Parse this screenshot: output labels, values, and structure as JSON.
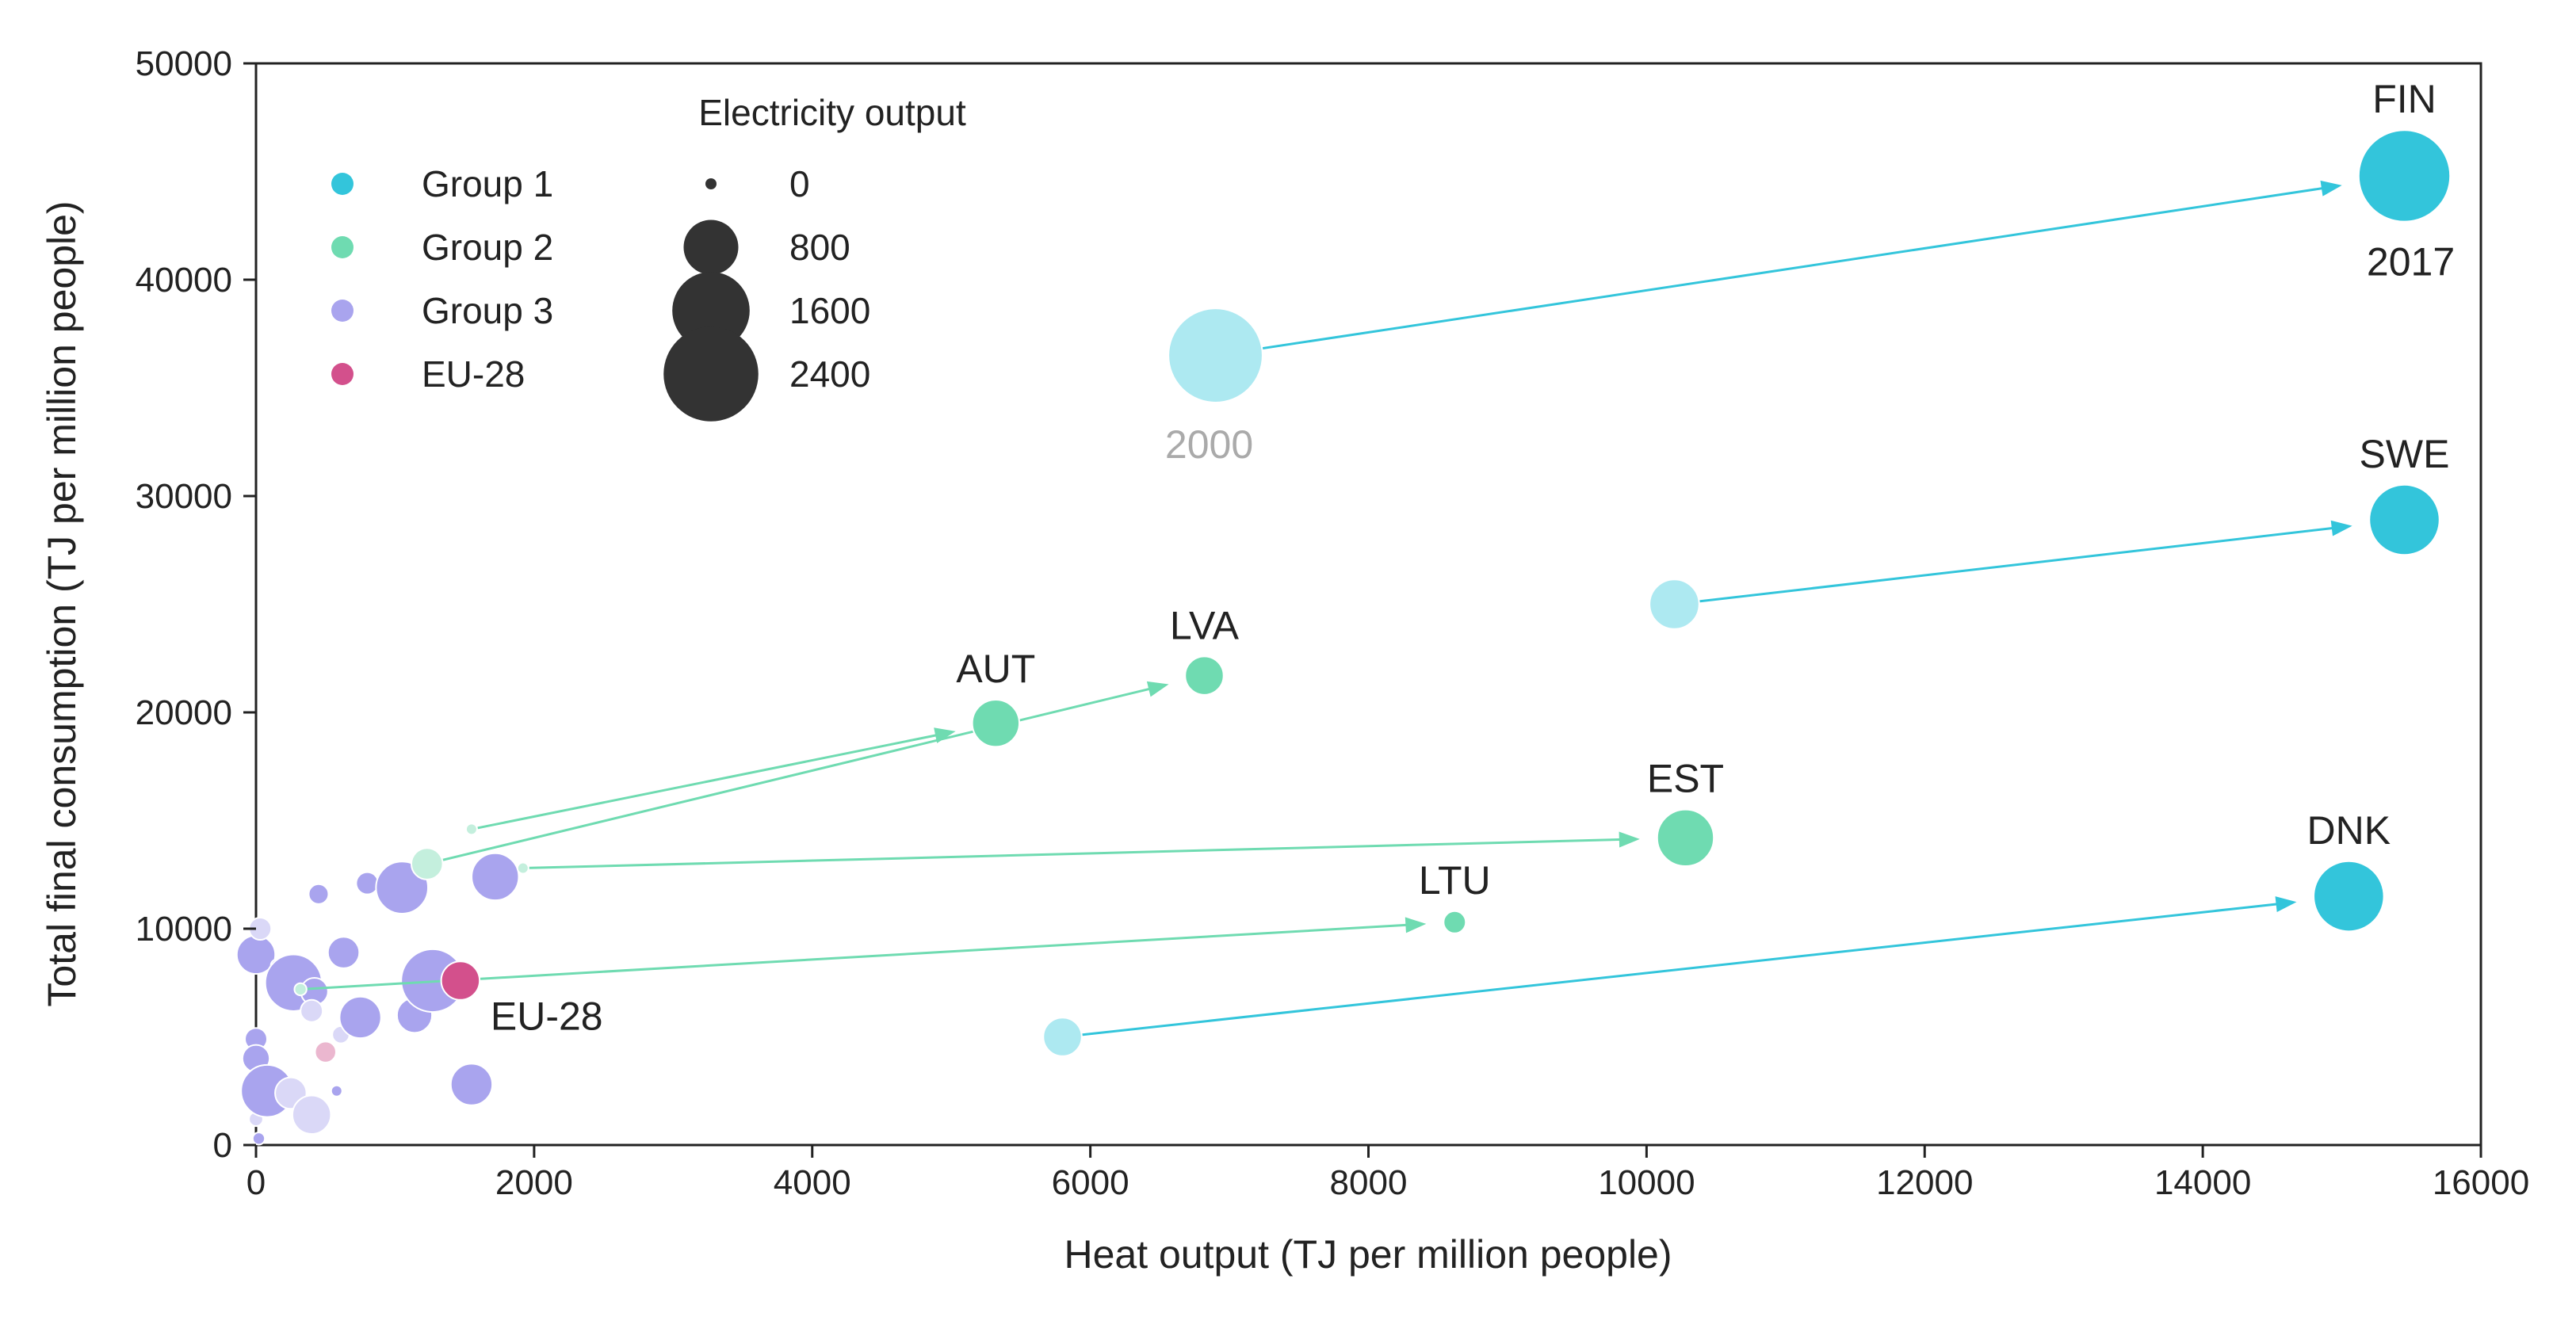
{
  "colors": {
    "group1": "#33c5db",
    "group1_light": "#ade9f1",
    "group2": "#6fdbb1",
    "group2_light": "#c4efdd",
    "group3": "#a9a4ee",
    "group3_light": "#dad8f7",
    "eu28": "#d3508c",
    "eu28_light": "#ebb7cf",
    "size_legend": "#333333",
    "year_start": "#aaaaaa",
    "year_end": "#222222"
  },
  "legend": {
    "groups": [
      {
        "label": "Group 1",
        "color_key": "group1"
      },
      {
        "label": "Group 2",
        "color_key": "group2"
      },
      {
        "label": "Group 3",
        "color_key": "group3"
      },
      {
        "label": "EU-28",
        "color_key": "eu28"
      }
    ],
    "size_title": "Electricity output",
    "sizes": [
      {
        "label": "0",
        "value": 0
      },
      {
        "label": "800",
        "value": 800
      },
      {
        "label": "1600",
        "value": 1600
      },
      {
        "label": "2400",
        "value": 2400
      }
    ]
  },
  "chart_data": {
    "type": "scatter",
    "title": "",
    "xlabel": "Heat output (TJ per million people)",
    "ylabel": "Total final consumption (TJ per million people)",
    "xlim": [
      0,
      16000
    ],
    "ylim": [
      0,
      50000
    ],
    "xticks": [
      "0",
      "2000",
      "4000",
      "6000",
      "8000",
      "10000",
      "12000",
      "14000",
      "16000"
    ],
    "yticks": [
      "0",
      "10000",
      "20000",
      "30000",
      "40000",
      "50000"
    ],
    "grid": false,
    "legend_position": "top-left",
    "size_encoding": "Electricity output",
    "year_labels": {
      "start": "2000",
      "end": "2017"
    },
    "highlighted": [
      {
        "label": "FIN",
        "group": "Group 1",
        "start": {
          "x": 6900,
          "y": 36500,
          "size": 1800
        },
        "end": {
          "x": 15450,
          "y": 44800,
          "size": 1700
        }
      },
      {
        "label": "SWE",
        "group": "Group 1",
        "start": {
          "x": 10200,
          "y": 25000,
          "size": 500
        },
        "end": {
          "x": 15450,
          "y": 28900,
          "size": 1000
        }
      },
      {
        "label": "DNK",
        "group": "Group 1",
        "start": {
          "x": 5800,
          "y": 5000,
          "size": 300
        },
        "end": {
          "x": 15050,
          "y": 11500,
          "size": 1000
        }
      },
      {
        "label": "AUT",
        "group": "Group 2",
        "start": {
          "x": 1550,
          "y": 14600,
          "size": 15
        },
        "end": {
          "x": 5320,
          "y": 19500,
          "size": 450
        }
      },
      {
        "label": "LVA",
        "group": "Group 2",
        "start": {
          "x": 1230,
          "y": 13000,
          "size": 200
        },
        "end": {
          "x": 6820,
          "y": 21700,
          "size": 300
        }
      },
      {
        "label": "EST",
        "group": "Group 2",
        "start": {
          "x": 1920,
          "y": 12800,
          "size": 15
        },
        "end": {
          "x": 10280,
          "y": 14200,
          "size": 650
        }
      },
      {
        "label": "LTU",
        "group": "Group 2",
        "start": {
          "x": 320,
          "y": 7200,
          "size": 30
        },
        "end": {
          "x": 8620,
          "y": 10300,
          "size": 100
        }
      },
      {
        "label": "EU-28",
        "group": "EU-28",
        "start": {
          "x": 500,
          "y": 4300,
          "size": 90
        },
        "end": {
          "x": 1470,
          "y": 7600,
          "size": 300
        }
      }
    ],
    "other_points": [
      {
        "x": 0,
        "y": 8800,
        "size": 300,
        "year": "2017"
      },
      {
        "x": 30,
        "y": 10000,
        "size": 100,
        "year": "2000"
      },
      {
        "x": 0,
        "y": 4900,
        "size": 100,
        "year": "2017"
      },
      {
        "x": 0,
        "y": 4000,
        "size": 150,
        "year": "2017"
      },
      {
        "x": 0,
        "y": 2700,
        "size": 80,
        "year": "2000"
      },
      {
        "x": 0,
        "y": 1200,
        "size": 40,
        "year": "2000"
      },
      {
        "x": 20,
        "y": 300,
        "size": 30,
        "year": "2017"
      },
      {
        "x": 80,
        "y": 2500,
        "size": 550,
        "year": "2017"
      },
      {
        "x": 120,
        "y": 7500,
        "size": 40,
        "year": "2017"
      },
      {
        "x": 150,
        "y": 8300,
        "size": 30,
        "year": "2017"
      },
      {
        "x": 270,
        "y": 7500,
        "size": 650,
        "year": "2017"
      },
      {
        "x": 250,
        "y": 2400,
        "size": 200,
        "year": "2000"
      },
      {
        "x": 420,
        "y": 7100,
        "size": 150,
        "year": "2017"
      },
      {
        "x": 400,
        "y": 6200,
        "size": 100,
        "year": "2000"
      },
      {
        "x": 400,
        "y": 1400,
        "size": 300,
        "year": "2000"
      },
      {
        "x": 450,
        "y": 11600,
        "size": 80,
        "year": "2017"
      },
      {
        "x": 580,
        "y": 2500,
        "size": 20,
        "year": "2017"
      },
      {
        "x": 610,
        "y": 5100,
        "size": 60,
        "year": "2000"
      },
      {
        "x": 630,
        "y": 8900,
        "size": 200,
        "year": "2017"
      },
      {
        "x": 750,
        "y": 5900,
        "size": 350,
        "year": "2017"
      },
      {
        "x": 800,
        "y": 12100,
        "size": 100,
        "year": "2017"
      },
      {
        "x": 1050,
        "y": 11900,
        "size": 550,
        "year": "2017"
      },
      {
        "x": 1140,
        "y": 6000,
        "size": 250,
        "year": "2017"
      },
      {
        "x": 1270,
        "y": 7600,
        "size": 800,
        "year": "2017"
      },
      {
        "x": 1550,
        "y": 2800,
        "size": 350,
        "year": "2017"
      },
      {
        "x": 1720,
        "y": 12400,
        "size": 450,
        "year": "2017"
      }
    ]
  }
}
